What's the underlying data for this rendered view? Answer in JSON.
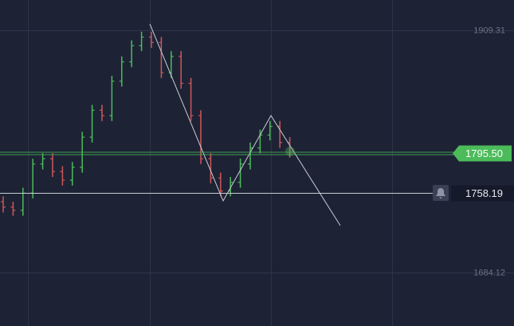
{
  "chart_data": {
    "type": "ohlc",
    "categories": [
      null,
      null,
      null,
      null,
      null,
      null,
      null,
      null,
      null,
      null,
      null,
      null,
      null,
      null,
      null,
      null,
      null,
      null,
      null,
      null,
      null,
      null,
      null,
      null,
      null,
      null,
      null,
      null,
      null,
      null
    ],
    "open": [
      1750,
      1745,
      1742,
      1758,
      1785,
      1790,
      1778,
      1770,
      1782,
      1810,
      1835,
      1830,
      1862,
      1880,
      1895,
      1903,
      1898,
      1870,
      1885,
      1860,
      1830,
      1790,
      1772,
      1760,
      1768,
      1785,
      1800,
      1812,
      1820,
      1805
    ],
    "high": [
      1755,
      1750,
      1763,
      1790,
      1795,
      1795,
      1783,
      1787,
      1815,
      1840,
      1840,
      1867,
      1885,
      1900,
      1908,
      1908,
      1903,
      1890,
      1890,
      1865,
      1835,
      1795,
      1777,
      1773,
      1790,
      1805,
      1817,
      1825,
      1825,
      1810
    ],
    "low": [
      1740,
      1737,
      1737,
      1753,
      1780,
      1773,
      1765,
      1765,
      1777,
      1805,
      1825,
      1825,
      1857,
      1875,
      1890,
      1893,
      1865,
      1865,
      1855,
      1825,
      1785,
      1767,
      1755,
      1755,
      1763,
      1780,
      1795,
      1807,
      1800,
      1791
    ],
    "close": [
      1745,
      1742,
      1758,
      1785,
      1790,
      1778,
      1770,
      1782,
      1810,
      1835,
      1830,
      1862,
      1880,
      1895,
      1903,
      1898,
      1870,
      1885,
      1860,
      1830,
      1790,
      1772,
      1760,
      1768,
      1785,
      1800,
      1812,
      1820,
      1805,
      1796
    ],
    "up_color": "#4cbb5a",
    "down_color": "#d0575a",
    "ylim": [
      1634.5,
      1937.45
    ],
    "yticks": [
      1909.31,
      1684.12
    ],
    "grid": true,
    "current_price": {
      "value": 1795.5,
      "label": "1795.50"
    },
    "alert_price": 1758.19
  }
}
